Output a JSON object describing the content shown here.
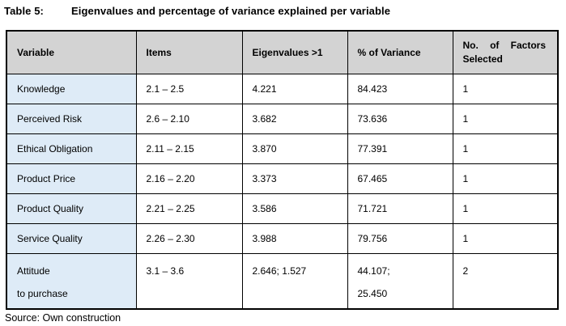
{
  "caption": {
    "label": "Table 5:",
    "text": "Eigenvalues and percentage of variance explained per variable"
  },
  "colors": {
    "header_bg": "#d3d3d3",
    "variable_column_bg": "#deebf7",
    "border": "#000000",
    "page_bg": "#ffffff"
  },
  "table": {
    "columns": [
      "Variable",
      "Items",
      "Eigenvalues >1",
      "% of Variance",
      "No. of Factors Selected"
    ],
    "rows": [
      {
        "variable": "Knowledge",
        "items": "2.1 – 2.5",
        "eigenvalues": "4.221",
        "variance": "84.423",
        "factors": "1"
      },
      {
        "variable": "Perceived Risk",
        "items": "2.6 – 2.10",
        "eigenvalues": "3.682",
        "variance": "73.636",
        "factors": "1"
      },
      {
        "variable": "Ethical Obligation",
        "items": "2.11 – 2.15",
        "eigenvalues": "3.870",
        "variance": "77.391",
        "factors": "1"
      },
      {
        "variable": "Product Price",
        "items": "2.16 – 2.20",
        "eigenvalues": "3.373",
        "variance": "67.465",
        "factors": "1"
      },
      {
        "variable": "Product Quality",
        "items": "2.21 – 2.25",
        "eigenvalues": "3.586",
        "variance": "71.721",
        "factors": "1"
      },
      {
        "variable": "Service Quality",
        "items": "2.26 – 2.30",
        "eigenvalues": "3.988",
        "variance": "79.756",
        "factors": "1"
      },
      {
        "variable": "Attitude",
        "variable2": "to purchase",
        "items": "3.1 – 3.6",
        "eigenvalues": "2.646; 1.527",
        "variance": "44.107;",
        "variance2": "25.450",
        "factors": "2"
      }
    ]
  },
  "source": "Source: Own construction"
}
